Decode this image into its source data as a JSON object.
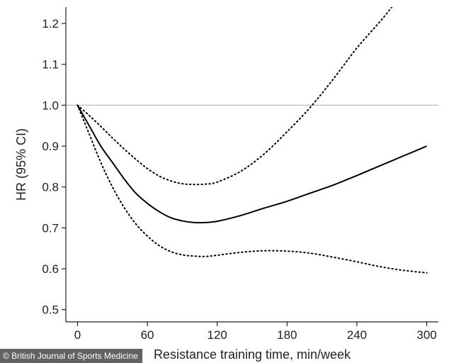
{
  "credit": "© British Journal of Sports Medicine",
  "chart_data": {
    "type": "line",
    "title": "",
    "xlabel": "Resistance training time, min/week",
    "ylabel": "HR (95% CI)",
    "xlim": [
      -10,
      310
    ],
    "ylim": [
      0.47,
      1.24
    ],
    "x_ticks": [
      0,
      60,
      120,
      180,
      240,
      300
    ],
    "y_ticks": [
      0.5,
      0.6,
      0.7,
      0.8,
      0.9,
      1.0,
      1.1,
      1.2
    ],
    "x_tick_labels": [
      "0",
      "60",
      "120",
      "180",
      "240",
      "300"
    ],
    "y_tick_labels": [
      "0.5",
      "0.6",
      "0.7",
      "0.8",
      "0.9",
      "1.0",
      "1.1",
      "1.2"
    ],
    "reference_line": {
      "y": 1.0,
      "color": "#bbbbbb"
    },
    "grid": false,
    "series": [
      {
        "role": "estimate",
        "style": "solid",
        "color": "#000000",
        "x": [
          0,
          10,
          20,
          30,
          40,
          50,
          60,
          70,
          80,
          90,
          100,
          110,
          120,
          140,
          160,
          180,
          200,
          220,
          240,
          260,
          280,
          300
        ],
        "y": [
          1.0,
          0.95,
          0.9,
          0.86,
          0.82,
          0.785,
          0.76,
          0.74,
          0.725,
          0.717,
          0.713,
          0.713,
          0.716,
          0.73,
          0.748,
          0.765,
          0.785,
          0.805,
          0.828,
          0.852,
          0.876,
          0.9
        ]
      },
      {
        "role": "upper_ci",
        "style": "dotted",
        "color": "#000000",
        "x": [
          0,
          10,
          20,
          30,
          40,
          50,
          60,
          70,
          80,
          90,
          100,
          110,
          120,
          140,
          160,
          180,
          200,
          220,
          240,
          260,
          270
        ],
        "y": [
          1.0,
          0.975,
          0.948,
          0.92,
          0.893,
          0.868,
          0.845,
          0.827,
          0.815,
          0.808,
          0.806,
          0.807,
          0.812,
          0.838,
          0.88,
          0.935,
          0.995,
          1.065,
          1.14,
          1.205,
          1.24
        ]
      },
      {
        "role": "lower_ci",
        "style": "dotted",
        "color": "#000000",
        "x": [
          0,
          10,
          20,
          30,
          40,
          50,
          60,
          70,
          80,
          90,
          100,
          110,
          120,
          140,
          160,
          180,
          200,
          220,
          240,
          260,
          280,
          300
        ],
        "y": [
          1.0,
          0.93,
          0.86,
          0.8,
          0.75,
          0.71,
          0.68,
          0.657,
          0.642,
          0.634,
          0.631,
          0.63,
          0.633,
          0.64,
          0.644,
          0.643,
          0.638,
          0.628,
          0.617,
          0.605,
          0.596,
          0.59
        ]
      }
    ]
  }
}
